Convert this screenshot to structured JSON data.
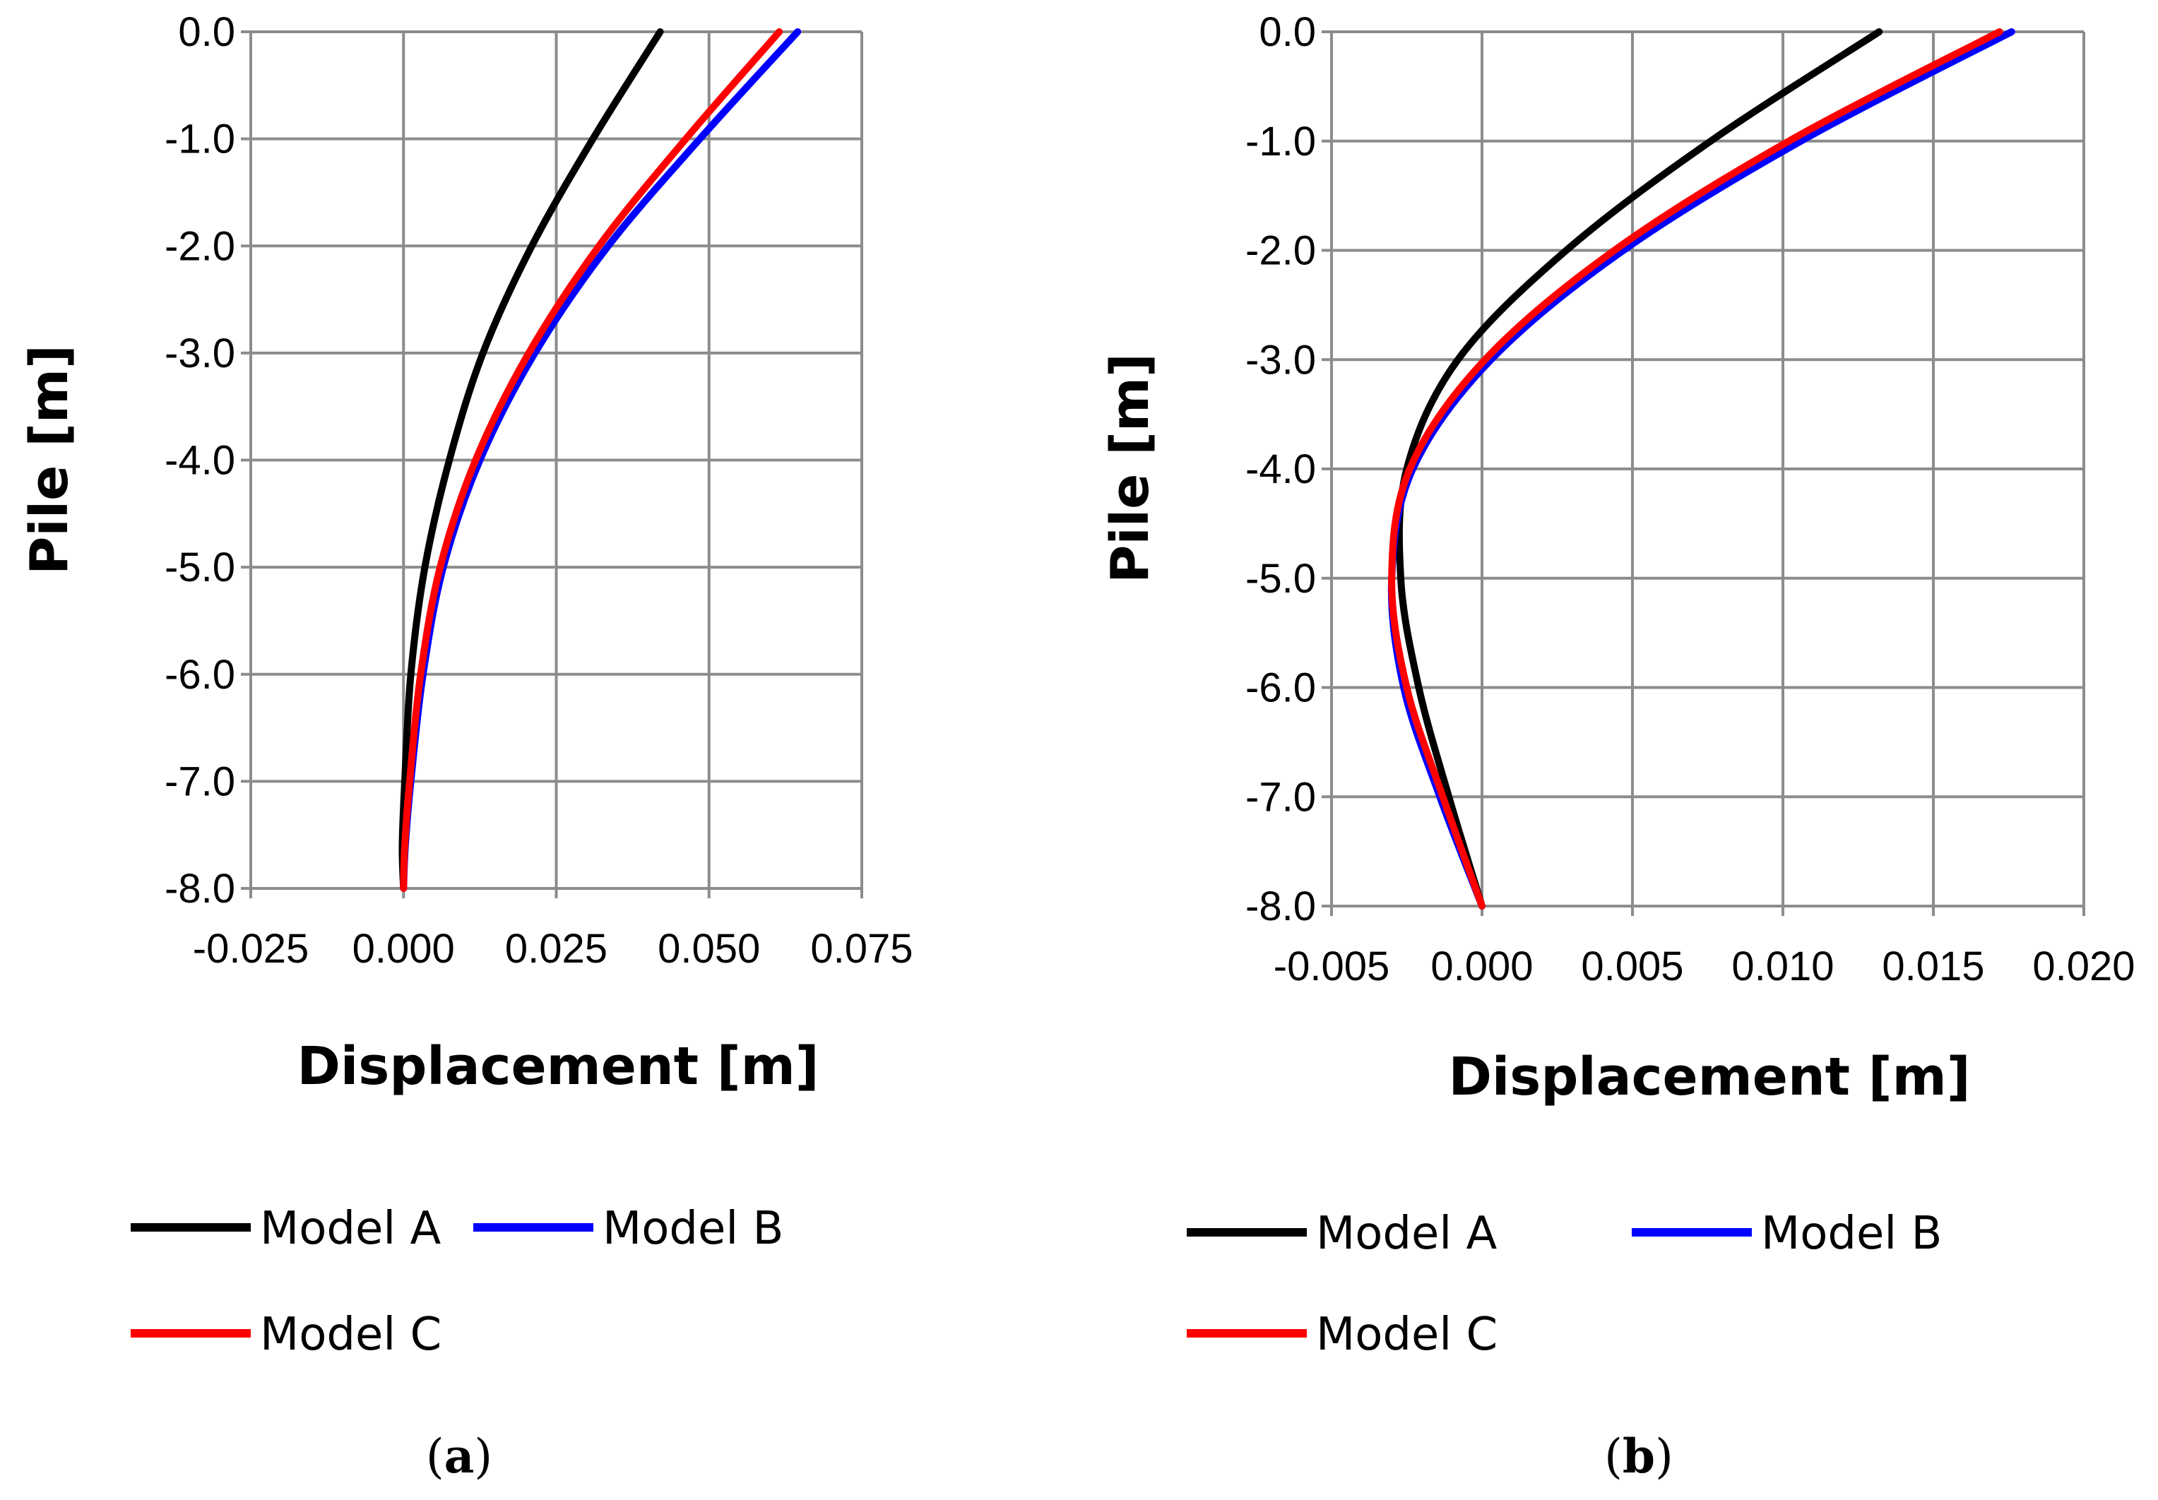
{
  "chart_data": [
    {
      "id": "a",
      "type": "line",
      "panel_label": {
        "open": "(",
        "letter": "a",
        "close": ")"
      },
      "xlabel": "Displacement [m]",
      "ylabel": "Pile [m]",
      "xlim": [
        -0.025,
        0.075
      ],
      "ylim": [
        -8.0,
        0.0
      ],
      "xticks": [
        -0.025,
        0.0,
        0.025,
        0.05,
        0.075
      ],
      "xtick_labels": [
        "-0.025",
        "0.000",
        "0.025",
        "0.050",
        "0.075"
      ],
      "yticks": [
        0,
        -1,
        -2,
        -3,
        -4,
        -5,
        -6,
        -7,
        -8
      ],
      "ytick_labels": [
        "0.0",
        "-1.0",
        "-2.0",
        "-3.0",
        "-4.0",
        "-5.0",
        "-6.0",
        "-7.0",
        "-8.0"
      ],
      "grid": true,
      "series": [
        {
          "name": "Model A",
          "color": "#000000",
          "x": [
            0.042,
            0.031,
            0.021,
            0.013,
            0.0075,
            0.0035,
            0.0012,
            0.0002,
            -0.0002,
            0.0
          ],
          "y": [
            0.0,
            -1.0,
            -2.0,
            -3.0,
            -4.0,
            -5.0,
            -6.0,
            -7.0,
            -7.6,
            -8.0
          ]
        },
        {
          "name": "Model B",
          "color": "#0000ff",
          "x": [
            0.0645,
            0.0485,
            0.0335,
            0.0215,
            0.0125,
            0.0065,
            0.0032,
            0.0012,
            0.0003,
            0.0
          ],
          "y": [
            0.0,
            -1.0,
            -2.0,
            -3.0,
            -4.0,
            -5.0,
            -6.0,
            -7.0,
            -7.6,
            -8.0
          ]
        },
        {
          "name": "Model C",
          "color": "#ff0000",
          "x": [
            0.0615,
            0.0462,
            0.032,
            0.0205,
            0.0118,
            0.006,
            0.0028,
            0.001,
            0.0002,
            0.0
          ],
          "y": [
            0.0,
            -1.0,
            -2.0,
            -3.0,
            -4.0,
            -5.0,
            -6.0,
            -7.0,
            -7.6,
            -8.0
          ]
        }
      ],
      "legend": [
        [
          {
            "name": "Model A",
            "color": "#000000"
          },
          {
            "name": "Model B",
            "color": "#0000ff"
          }
        ],
        [
          {
            "name": "Model C",
            "color": "#ff0000"
          }
        ]
      ]
    },
    {
      "id": "b",
      "type": "line",
      "panel_label": {
        "open": "(",
        "letter": "b",
        "close": ")"
      },
      "xlabel": "Displacement [m]",
      "ylabel": "Pile [m]",
      "xlim": [
        -0.005,
        0.02
      ],
      "ylim": [
        -8.0,
        0.0
      ],
      "xticks": [
        -0.005,
        0.0,
        0.005,
        0.01,
        0.015,
        0.02
      ],
      "xtick_labels": [
        "-0.005",
        "0.000",
        "0.005",
        "0.010",
        "0.015",
        "0.020"
      ],
      "yticks": [
        0,
        -1,
        -2,
        -3,
        -4,
        -5,
        -6,
        -7,
        -8
      ],
      "ytick_labels": [
        "0.0",
        "-1.0",
        "-2.0",
        "-3.0",
        "-4.0",
        "-5.0",
        "-6.0",
        "-7.0",
        "-8.0"
      ],
      "grid": true,
      "series": [
        {
          "name": "Model A",
          "color": "#000000",
          "x": [
            0.0132,
            0.0076,
            0.0028,
            -0.0008,
            -0.0025,
            -0.0027,
            -0.0021,
            -0.0011,
            0.0
          ],
          "y": [
            0.0,
            -1.0,
            -2.0,
            -3.0,
            -4.0,
            -5.0,
            -6.0,
            -7.0,
            -8.0
          ]
        },
        {
          "name": "Model B",
          "color": "#0000ff",
          "x": [
            0.0176,
            0.0106,
            0.0047,
            0.0003,
            -0.0023,
            -0.003,
            -0.0026,
            -0.0014,
            0.0
          ],
          "y": [
            0.0,
            -1.0,
            -2.0,
            -3.0,
            -4.0,
            -5.0,
            -6.0,
            -7.0,
            -8.0
          ]
        },
        {
          "name": "Model C",
          "color": "#ff0000",
          "x": [
            0.0172,
            0.0102,
            0.0044,
            0.0001,
            -0.0024,
            -0.003,
            -0.0025,
            -0.0013,
            0.0
          ],
          "y": [
            0.0,
            -1.0,
            -2.0,
            -3.0,
            -4.0,
            -5.0,
            -6.0,
            -7.0,
            -8.0
          ]
        }
      ],
      "legend": [
        [
          {
            "name": "Model A",
            "color": "#000000"
          },
          {
            "name": "Model B",
            "color": "#0000ff"
          }
        ],
        [
          {
            "name": "Model C",
            "color": "#ff0000"
          }
        ]
      ]
    }
  ]
}
